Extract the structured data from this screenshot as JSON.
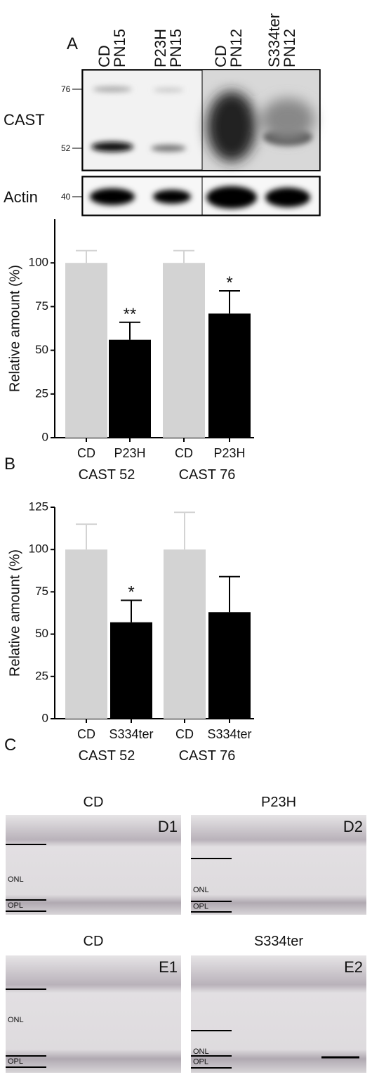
{
  "panel_a": {
    "label": "A",
    "lanes": [
      [
        "CD",
        "PN15"
      ],
      [
        "P23H",
        "PN15"
      ],
      [
        "CD",
        "PN12"
      ],
      [
        "S334ter",
        "PN12"
      ]
    ],
    "blots": [
      "CAST",
      "Actin"
    ],
    "markers": [
      "76",
      "52",
      "40"
    ]
  },
  "chart_data": [
    {
      "type": "bar",
      "panel": "B",
      "ylabel": "Relative amount (%)",
      "categories": [
        "CD",
        "P23H",
        "CD",
        "P23H"
      ],
      "groups": [
        "CAST 52",
        "CAST 76"
      ],
      "values": [
        100,
        56,
        100,
        71
      ],
      "errors": [
        7,
        10,
        7,
        13
      ],
      "significance": [
        null,
        "**",
        null,
        "*"
      ],
      "colors": [
        "#d3d3d3",
        "#000000",
        "#d3d3d3",
        "#000000"
      ],
      "ylim": [
        0,
        125
      ],
      "yticks": [
        0,
        25,
        50,
        75,
        100
      ]
    },
    {
      "type": "bar",
      "panel": "C",
      "ylabel": "Relative amount (%)",
      "categories": [
        "CD",
        "S334ter",
        "CD",
        "S334ter"
      ],
      "groups": [
        "CAST 52",
        "CAST 76"
      ],
      "values": [
        100,
        57,
        100,
        63
      ],
      "errors": [
        15,
        13,
        22,
        21
      ],
      "significance": [
        null,
        "*",
        null,
        null
      ],
      "colors": [
        "#d3d3d3",
        "#000000",
        "#d3d3d3",
        "#000000"
      ],
      "ylim": [
        0,
        125
      ],
      "yticks": [
        0,
        25,
        50,
        75,
        100,
        125
      ]
    }
  ],
  "micrographs": [
    {
      "title": "CD",
      "label": "D1",
      "layers": [
        "ONL",
        "OPL"
      ]
    },
    {
      "title": "P23H",
      "label": "D2",
      "layers": [
        "ONL",
        "OPL"
      ]
    },
    {
      "title": "CD",
      "label": "E1",
      "layers": [
        "ONL",
        "OPL"
      ]
    },
    {
      "title": "S334ter",
      "label": "E2",
      "layers": [
        "ONL",
        "OPL"
      ]
    }
  ]
}
